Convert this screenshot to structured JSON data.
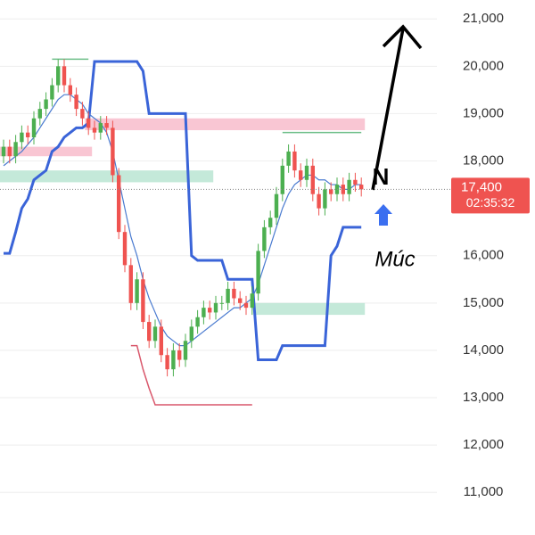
{
  "chart_data": {
    "type": "candlestick",
    "up_color": "#4caf50",
    "down_color": "#ef5350",
    "ylim": [
      10100,
      21400
    ],
    "yticks": [
      {
        "value": 11000,
        "label": "11,000"
      },
      {
        "value": 12000,
        "label": "12,000"
      },
      {
        "value": 13000,
        "label": "13,000"
      },
      {
        "value": 14000,
        "label": "14,000"
      },
      {
        "value": 15000,
        "label": "15,000"
      },
      {
        "value": 16000,
        "label": "16,000"
      },
      {
        "value": 18000,
        "label": "18,000"
      },
      {
        "value": 19000,
        "label": "19,000"
      },
      {
        "value": 20000,
        "label": "20,000"
      },
      {
        "value": 21000,
        "label": "21,000"
      }
    ],
    "grid": true,
    "open": [
      18100,
      18300,
      18100,
      18400,
      18600,
      18500,
      18900,
      19100,
      19300,
      19600,
      20000,
      19600,
      19400,
      19100,
      18900,
      18700,
      18600,
      18800,
      18700,
      17700,
      16500,
      15800,
      15000,
      15500,
      14600,
      14200,
      14500,
      13900,
      13600,
      14000,
      13800,
      14200,
      14500,
      14700,
      14900,
      14800,
      15000,
      15000,
      15300,
      15100,
      15000,
      14900,
      15200,
      16100,
      16600,
      16800,
      17300,
      17900,
      18200,
      17800,
      17600,
      17900,
      17300,
      17000,
      17400,
      17300,
      17500,
      17300,
      17600,
      17500
    ],
    "high": [
      18450,
      18450,
      18550,
      18750,
      18750,
      19050,
      19250,
      19450,
      19750,
      20150,
      20150,
      19750,
      19550,
      19250,
      19050,
      18850,
      18950,
      18950,
      18850,
      17850,
      16650,
      15950,
      15650,
      15650,
      14750,
      14650,
      14650,
      14050,
      14150,
      14150,
      14350,
      14650,
      14850,
      15050,
      15050,
      15150,
      15150,
      15450,
      15450,
      15250,
      15150,
      15350,
      16250,
      16750,
      16950,
      17450,
      18050,
      18350,
      18350,
      17950,
      18050,
      18050,
      17450,
      17550,
      17550,
      17650,
      17650,
      17750,
      17750,
      17650
    ],
    "low": [
      17950,
      17950,
      17950,
      18250,
      18350,
      18350,
      18750,
      18950,
      19150,
      19450,
      19450,
      19250,
      18950,
      18750,
      18550,
      18450,
      18450,
      18550,
      17550,
      16350,
      15650,
      14850,
      14850,
      14450,
      14050,
      14050,
      13750,
      13450,
      13450,
      13650,
      13650,
      14050,
      14350,
      14550,
      14650,
      14650,
      14850,
      14850,
      14950,
      14850,
      14750,
      14750,
      15050,
      15950,
      16450,
      16650,
      17150,
      17750,
      17650,
      17450,
      17450,
      17150,
      16850,
      16850,
      17150,
      17150,
      17150,
      17150,
      17350,
      17250
    ],
    "close": [
      18300,
      18100,
      18400,
      18600,
      18500,
      18900,
      19100,
      19300,
      19600,
      20000,
      19600,
      19400,
      19100,
      18900,
      18700,
      18600,
      18800,
      18700,
      17700,
      16500,
      15800,
      15000,
      15500,
      14600,
      14200,
      14500,
      13900,
      13600,
      14000,
      13800,
      14200,
      14500,
      14700,
      14900,
      14800,
      15000,
      15000,
      15300,
      15100,
      15000,
      14900,
      15200,
      16100,
      16600,
      16800,
      17300,
      17900,
      18200,
      17800,
      17600,
      17900,
      17300,
      17000,
      17400,
      17300,
      17500,
      17300,
      17600,
      17500,
      17400
    ],
    "lines": [
      {
        "color": "#3a64d8",
        "width": 3,
        "values": [
          16050,
          16050,
          16500,
          17000,
          17200,
          17600,
          17700,
          17800,
          18200,
          18300,
          18500,
          18600,
          18700,
          18700,
          18800,
          20100,
          20100,
          20100,
          20100,
          20100,
          20100,
          20100,
          20100,
          19900,
          19000,
          19000,
          19000,
          19000,
          19000,
          19000,
          19000,
          16000,
          15900,
          15900,
          15900,
          15900,
          15900,
          15500,
          15500,
          15500,
          15500,
          15500,
          13800,
          13800,
          13800,
          13800,
          14100,
          14100,
          14100,
          14100,
          14100,
          14100,
          14100,
          14100,
          16000,
          16200,
          16600,
          16600,
          16600,
          16600
        ]
      },
      {
        "color": "#d9576b",
        "width": 1.5,
        "values": [
          null,
          null,
          null,
          null,
          null,
          null,
          null,
          null,
          null,
          null,
          null,
          null,
          null,
          null,
          null,
          null,
          null,
          null,
          null,
          null,
          null,
          14100,
          14100,
          13600,
          13200,
          12850,
          12850,
          12850,
          12850,
          12850,
          12850,
          12850,
          12850,
          12850,
          12850,
          12850,
          12850,
          12850,
          12850,
          12850,
          12850,
          12850,
          null,
          null,
          null,
          null,
          null,
          null,
          null,
          null,
          null,
          null,
          null,
          null,
          null,
          null,
          null,
          null,
          null,
          null
        ]
      },
      {
        "color": "#6fbf8a",
        "width": 1.5,
        "values": [
          null,
          null,
          null,
          null,
          null,
          null,
          null,
          null,
          20150,
          20150,
          20150,
          20150,
          20150,
          20150,
          20150,
          null,
          null,
          null,
          null,
          null,
          null,
          null,
          null,
          null,
          null,
          null,
          null,
          null,
          null,
          null,
          null,
          null,
          null,
          null,
          null,
          null,
          null,
          null,
          null,
          null,
          null,
          null,
          null,
          null,
          null,
          null,
          18600,
          18600,
          18600,
          18600,
          18600,
          18600,
          18600,
          18600,
          18600,
          18600,
          18600,
          18600,
          18600,
          18600
        ]
      },
      {
        "color": "#4a7bd0",
        "width": 1.2,
        "values": [
          17900,
          18000,
          18100,
          18200,
          18350,
          18500,
          18700,
          18900,
          19100,
          19300,
          19400,
          19400,
          19300,
          19200,
          19000,
          18900,
          18800,
          18600,
          18200,
          17600,
          17000,
          16400,
          16000,
          15500,
          15100,
          14800,
          14500,
          14300,
          14200,
          14100,
          14100,
          14200,
          14300,
          14400,
          14500,
          14600,
          14700,
          14800,
          14900,
          14900,
          15000,
          15100,
          15400,
          15800,
          16200,
          16600,
          17000,
          17300,
          17500,
          17600,
          17700,
          17700,
          17600,
          17600,
          17500,
          17500,
          17400,
          17400,
          17500,
          17500
        ]
      }
    ],
    "zones": [
      {
        "from": 0,
        "to": 14,
        "low": 18100,
        "high": 18300,
        "color": "#f7b8c8"
      },
      {
        "from": 14,
        "to": 59,
        "low": 18650,
        "high": 18900,
        "color": "#f7b8c8"
      },
      {
        "from": 0,
        "to": 34,
        "low": 17550,
        "high": 17800,
        "color": "#b5e3d0"
      },
      {
        "from": 42,
        "to": 59,
        "low": 14750,
        "high": 15000,
        "color": "#b5e3d0"
      }
    ],
    "last_price": {
      "value": 17400,
      "label": "17,400"
    },
    "countdown": "02:35:32",
    "annotations": {
      "n": "N",
      "muc": "Múc"
    }
  }
}
